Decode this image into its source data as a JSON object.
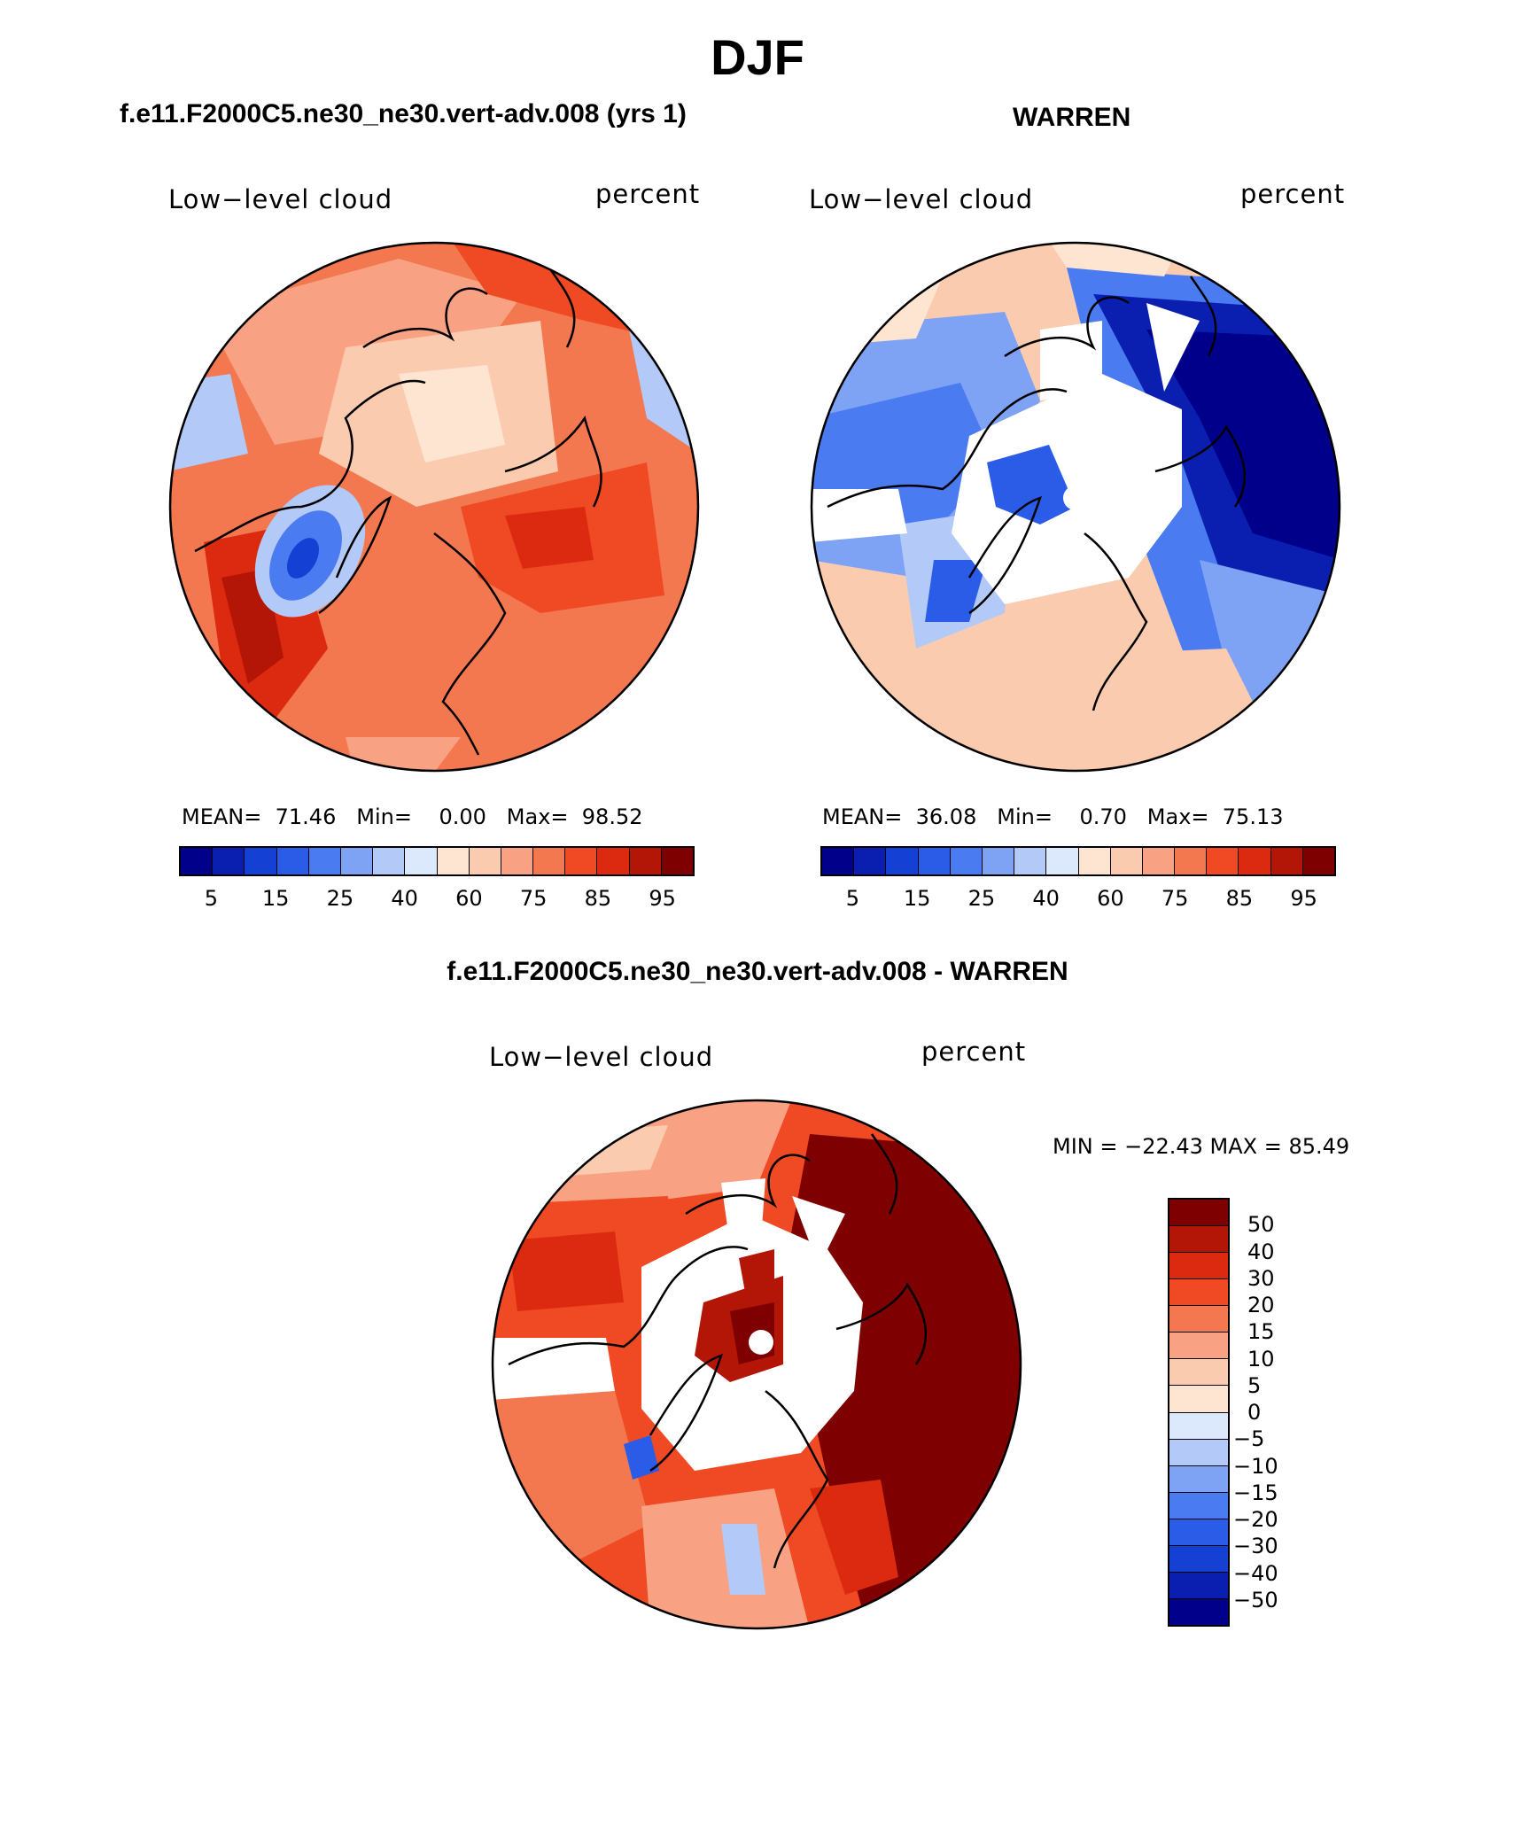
{
  "title": "DJF",
  "panels": [
    {
      "title": "f.e11.F2000C5.ne30_ne30.vert-adv.008 (yrs 1)",
      "variable": "Low−level cloud",
      "units": "percent",
      "stats": {
        "mean_label": "MEAN=",
        "mean": "71.46",
        "min_label": "Min=",
        "min": "0.00",
        "max_label": "Max=",
        "max": "98.52"
      }
    },
    {
      "title": "WARREN",
      "variable": "Low−level cloud",
      "units": "percent",
      "stats": {
        "mean_label": "MEAN=",
        "mean": "36.08",
        "min_label": "Min=",
        "min": "0.70",
        "max_label": "Max=",
        "max": "75.13"
      }
    },
    {
      "title": "f.e11.F2000C5.ne30_ne30.vert-adv.008 - WARREN",
      "variable": "Low−level cloud",
      "units": "percent",
      "minmax_text": "MIN = −22.43 MAX =   85.49"
    }
  ],
  "colorbar_abs": {
    "colors": [
      "#00008b",
      "#0a1fb0",
      "#1540d4",
      "#2a5ce8",
      "#4b7bf0",
      "#7ea2f4",
      "#b3c9f7",
      "#dce8fb",
      "#fde5d2",
      "#fbcbb0",
      "#f8a283",
      "#f3774f",
      "#ef4a23",
      "#dc2a10",
      "#b31607",
      "#7f0000"
    ],
    "ticks": [
      "5",
      "15",
      "25",
      "40",
      "60",
      "75",
      "85",
      "95"
    ]
  },
  "colorbar_diff": {
    "colors": [
      "#7f0000",
      "#b31607",
      "#dc2a10",
      "#ef4a23",
      "#f3774f",
      "#f8a283",
      "#fbcbb0",
      "#fde5d2",
      "#dce8fb",
      "#b3c9f7",
      "#7ea2f4",
      "#4b7bf0",
      "#2a5ce8",
      "#1540d4",
      "#0a1fb0",
      "#00008b"
    ],
    "ticks": [
      "50",
      "40",
      "30",
      "20",
      "15",
      "10",
      "5",
      "0",
      "−5",
      "−10",
      "−15",
      "−20",
      "−30",
      "−40",
      "−50"
    ]
  }
}
